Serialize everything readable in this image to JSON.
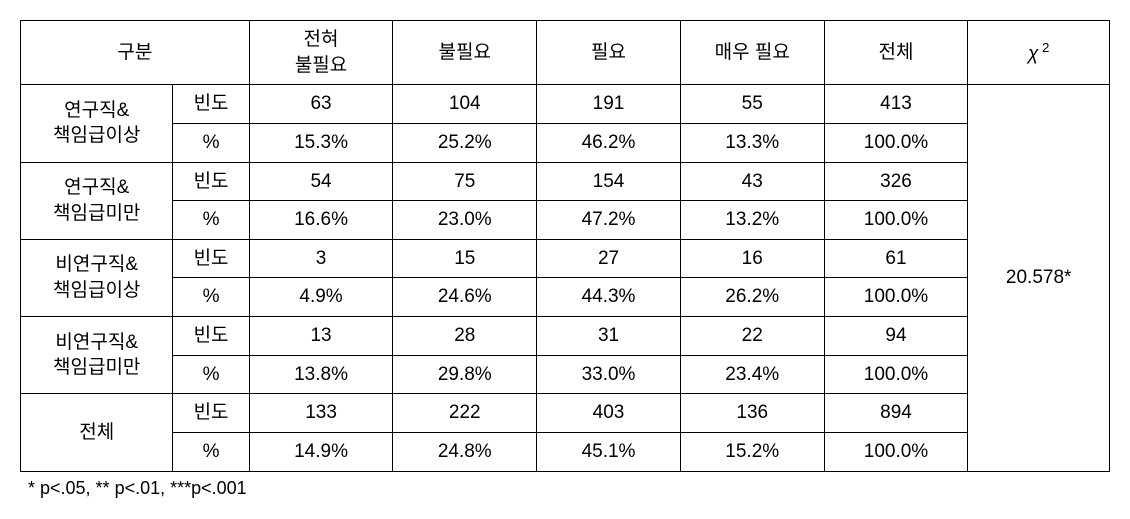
{
  "table": {
    "header": {
      "category": "구분",
      "cols": [
        "전혀\n불필요",
        "불필요",
        "필요",
        "매우 필요",
        "전체"
      ],
      "chi_html": "<i>χ</i><sup>&nbsp;2</sup>"
    },
    "sub_labels": {
      "freq": "빈도",
      "pct": "%"
    },
    "groups": [
      {
        "name": "연구직&\n책임급이상",
        "freq": [
          "63",
          "104",
          "191",
          "55",
          "413"
        ],
        "pct": [
          "15.3%",
          "25.2%",
          "46.2%",
          "13.3%",
          "100.0%"
        ]
      },
      {
        "name": "연구직&\n책임급미만",
        "freq": [
          "54",
          "75",
          "154",
          "43",
          "326"
        ],
        "pct": [
          "16.6%",
          "23.0%",
          "47.2%",
          "13.2%",
          "100.0%"
        ]
      },
      {
        "name": "비연구직&\n책임급이상",
        "freq": [
          "3",
          "15",
          "27",
          "16",
          "61"
        ],
        "pct": [
          "4.9%",
          "24.6%",
          "44.3%",
          "26.2%",
          "100.0%"
        ]
      },
      {
        "name": "비연구직&\n책임급미만",
        "freq": [
          "13",
          "28",
          "31",
          "22",
          "94"
        ],
        "pct": [
          "13.8%",
          "29.8%",
          "33.0%",
          "23.4%",
          "100.0%"
        ]
      }
    ],
    "total": {
      "name": "전체",
      "freq": [
        "133",
        "222",
        "403",
        "136",
        "894"
      ],
      "pct": [
        "14.9%",
        "24.8%",
        "45.1%",
        "15.2%",
        "100.0%"
      ]
    },
    "chi_value": "20.578*",
    "footnote": "* p<.05, ** p<.01, ***p<.001"
  },
  "style": {
    "font_size_cell": 19,
    "font_size_footnote": 18,
    "border_color": "#000000",
    "background_color": "#ffffff",
    "text_color": "#000000"
  }
}
